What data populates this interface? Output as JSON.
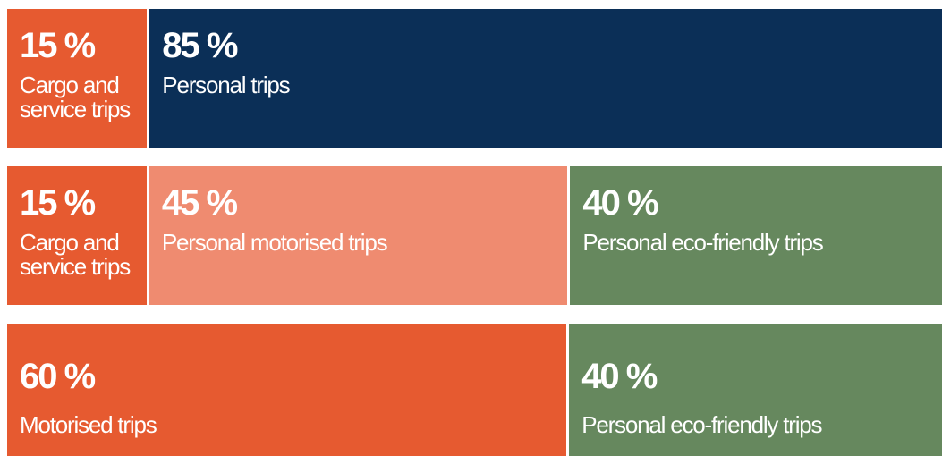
{
  "chart_data": [
    {
      "type": "stacked-bar",
      "series": [
        {
          "name": "Cargo and service trips",
          "color": "#e65a30",
          "values": [
            15
          ],
          "value_labels": [
            "15 %"
          ]
        },
        {
          "name": "Personal trips",
          "color": "#0b2f57",
          "values": [
            85
          ],
          "value_labels": [
            "85 %"
          ]
        }
      ]
    },
    {
      "type": "stacked-bar",
      "series": [
        {
          "name": "Cargo and service trips",
          "color": "#e65a30",
          "values": [
            15
          ],
          "value_labels": [
            "15 %"
          ]
        },
        {
          "name": "Personal motorised trips",
          "color": "#ef8b70",
          "values": [
            45
          ],
          "value_labels": [
            "45 %"
          ]
        },
        {
          "name": "Personal eco-friendly trips",
          "color": "#66885e",
          "values": [
            40
          ],
          "value_labels": [
            "40 %"
          ]
        }
      ]
    },
    {
      "type": "stacked-bar",
      "series": [
        {
          "name": "Motorised trips",
          "color": "#e65a30",
          "values": [
            60
          ],
          "value_labels": [
            "60 %"
          ]
        },
        {
          "name": "Personal eco-friendly trips",
          "color": "#66885e",
          "values": [
            40
          ],
          "value_labels": [
            "40 %"
          ]
        }
      ]
    }
  ]
}
